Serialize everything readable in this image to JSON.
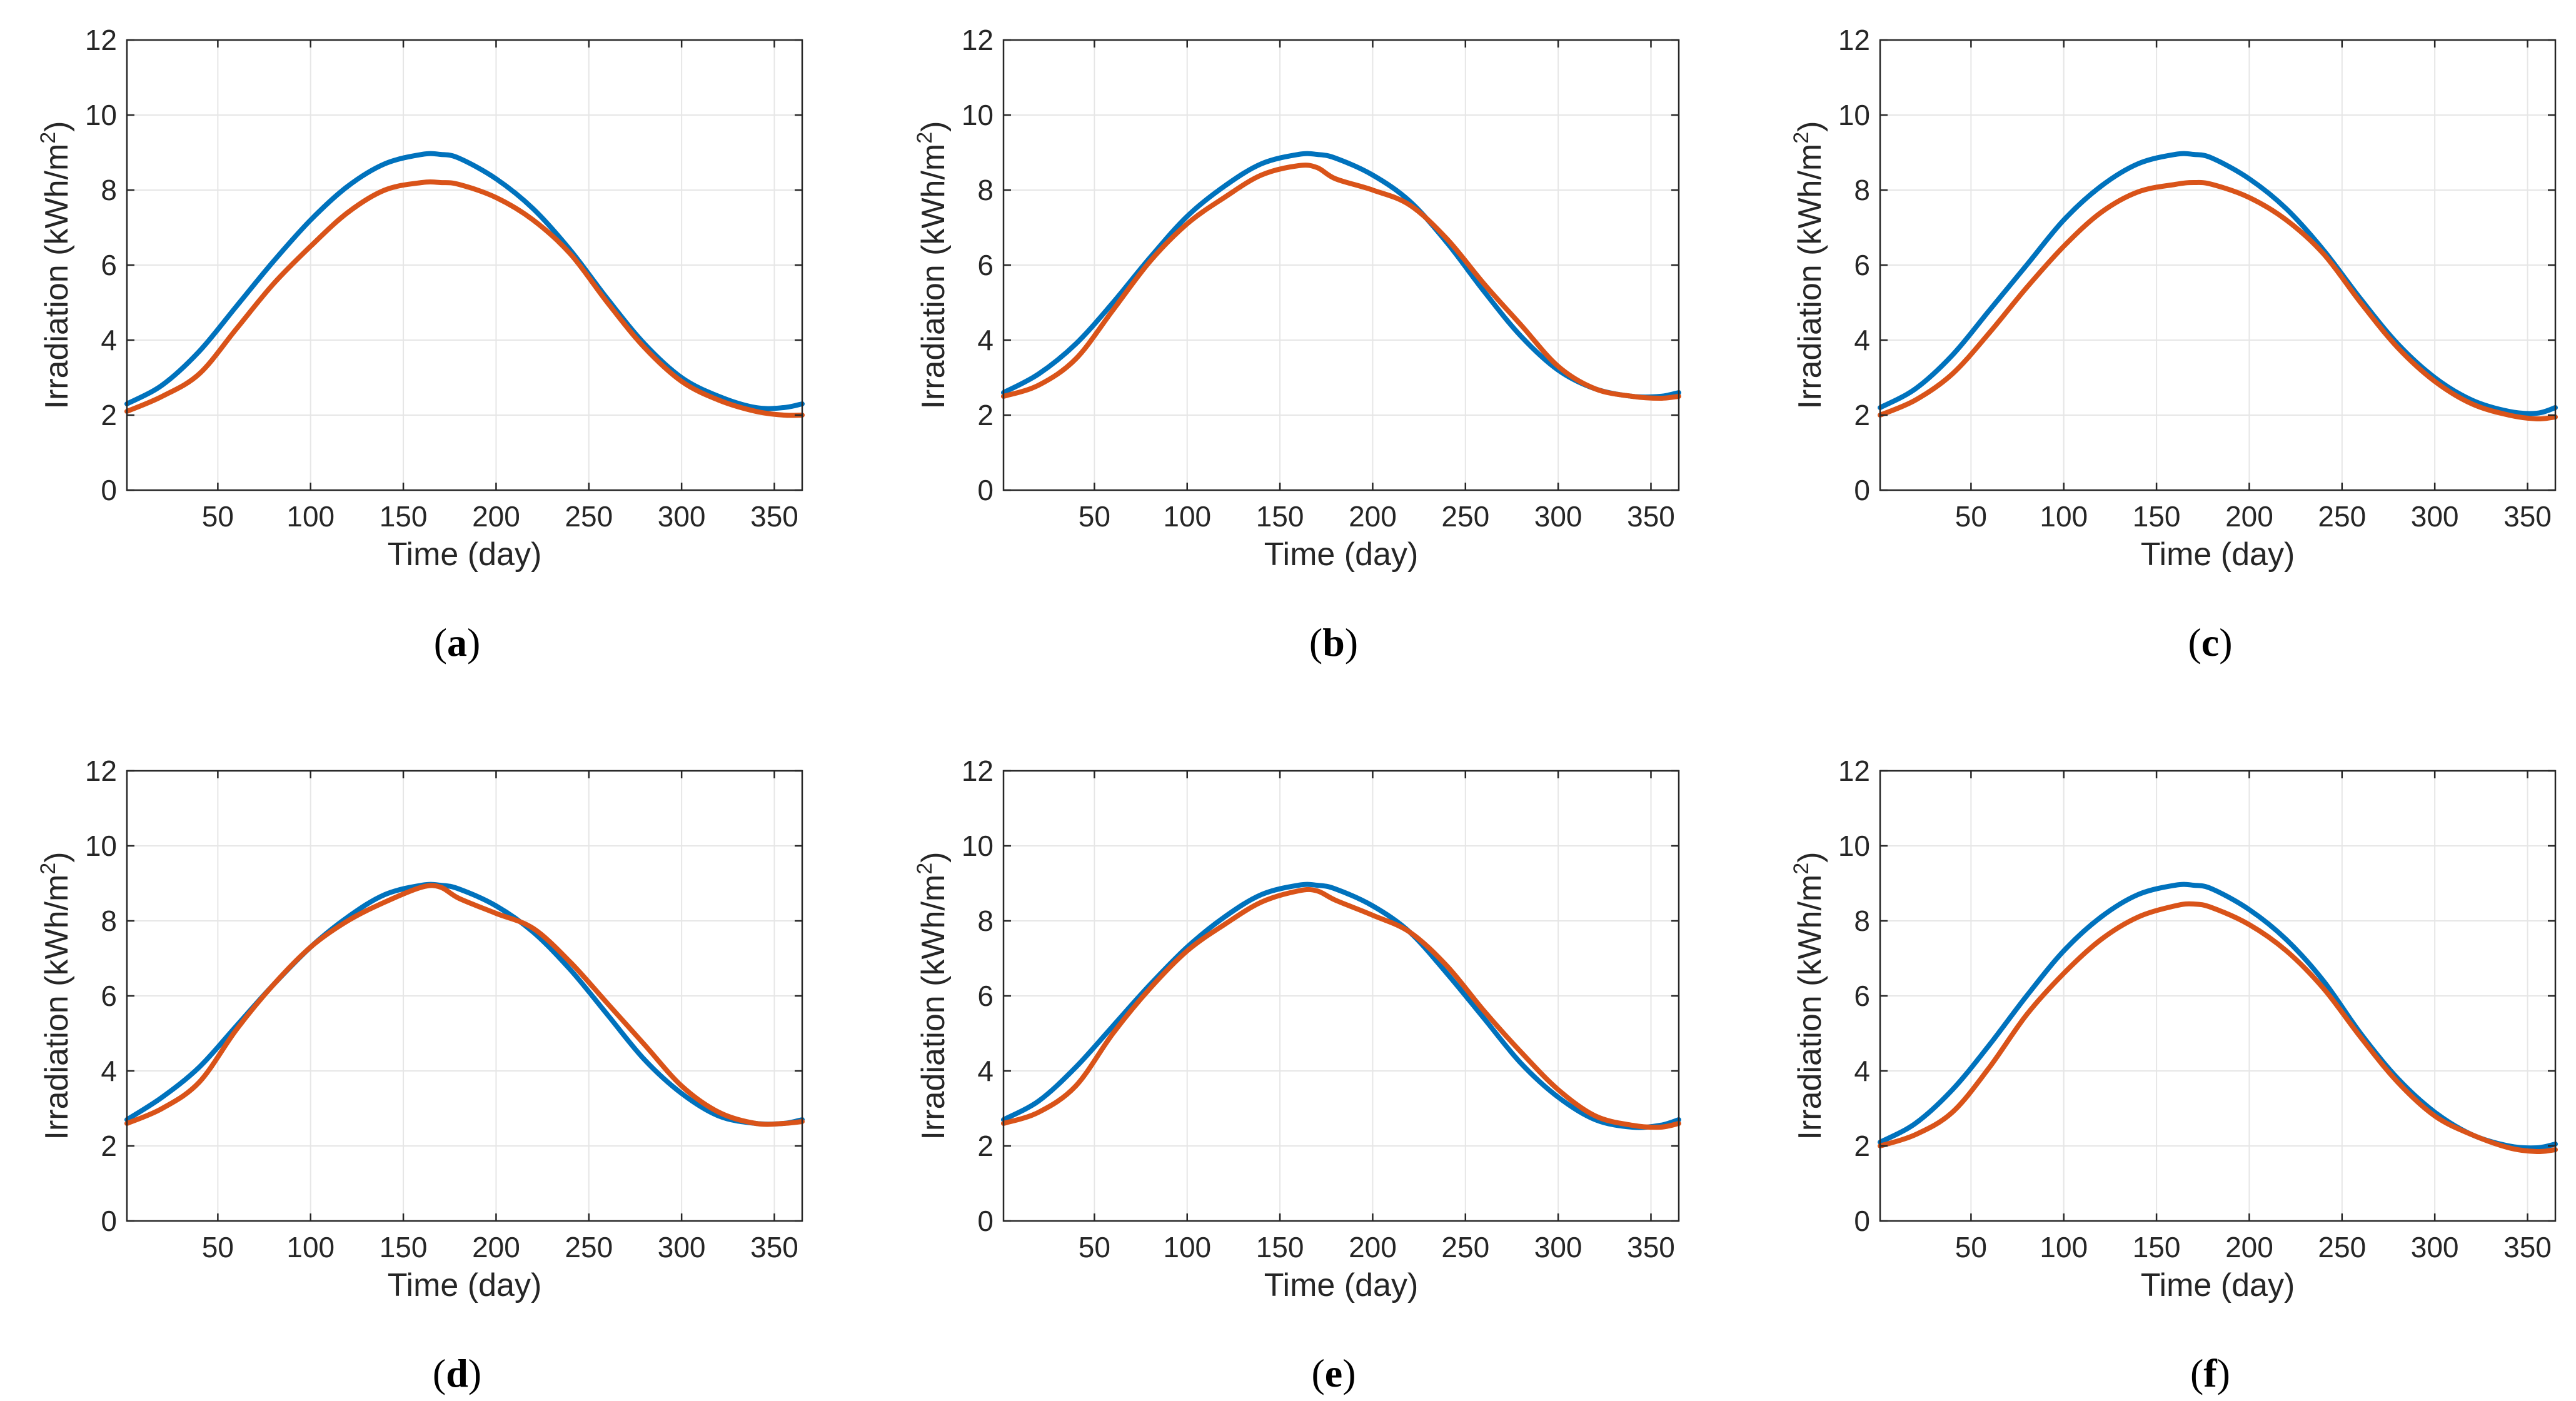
{
  "figure": {
    "colors": {
      "series_1": "#0072BD",
      "series_2": "#D95319",
      "grid": "#e6e6e6",
      "axes": "#262626"
    },
    "panels": [
      {
        "caption_letter": "a",
        "chart_data": {
          "type": "line",
          "xlabel": "Time (day)",
          "ylabel_main": "Irradiation (kWh/m",
          "ylabel_sup": "2",
          "ylabel_close": ")",
          "xlim": [
            1,
            365
          ],
          "ylim": [
            0,
            12
          ],
          "xticks": [
            50,
            100,
            150,
            200,
            250,
            300,
            350
          ],
          "yticks": [
            0,
            2,
            4,
            6,
            8,
            10,
            12
          ],
          "x": [
            1,
            20,
            40,
            60,
            80,
            100,
            120,
            140,
            160,
            170,
            180,
            200,
            220,
            240,
            260,
            280,
            300,
            320,
            340,
            355,
            365
          ],
          "series": [
            {
              "name": "blue",
              "values": [
                2.3,
                2.8,
                3.7,
                4.9,
                6.1,
                7.2,
                8.1,
                8.7,
                8.95,
                8.95,
                8.85,
                8.3,
                7.5,
                6.4,
                5.1,
                3.9,
                3.0,
                2.5,
                2.2,
                2.2,
                2.3
              ]
            },
            {
              "name": "orange",
              "values": [
                2.1,
                2.5,
                3.1,
                4.3,
                5.5,
                6.5,
                7.4,
                8.0,
                8.2,
                8.2,
                8.15,
                7.8,
                7.2,
                6.3,
                5.0,
                3.8,
                2.9,
                2.4,
                2.1,
                2.0,
                2.0
              ]
            }
          ]
        }
      },
      {
        "caption_letter": "b",
        "chart_data": {
          "type": "line",
          "xlabel": "Time (day)",
          "ylabel_main": "Irradiation (kWh/m",
          "ylabel_sup": "2",
          "ylabel_close": ")",
          "xlim": [
            1,
            365
          ],
          "ylim": [
            0,
            12
          ],
          "xticks": [
            50,
            100,
            150,
            200,
            250,
            300,
            350
          ],
          "yticks": [
            0,
            2,
            4,
            6,
            8,
            10,
            12
          ],
          "x": [
            1,
            20,
            40,
            60,
            80,
            100,
            120,
            140,
            160,
            170,
            180,
            200,
            220,
            240,
            260,
            280,
            300,
            320,
            340,
            355,
            365
          ],
          "series": [
            {
              "name": "blue",
              "values": [
                2.6,
                3.1,
                3.9,
                5.0,
                6.2,
                7.3,
                8.1,
                8.7,
                8.95,
                8.95,
                8.85,
                8.4,
                7.7,
                6.6,
                5.3,
                4.1,
                3.2,
                2.7,
                2.5,
                2.5,
                2.6
              ]
            },
            {
              "name": "orange",
              "values": [
                2.5,
                2.8,
                3.5,
                4.8,
                6.1,
                7.1,
                7.8,
                8.4,
                8.65,
                8.6,
                8.3,
                8.0,
                7.6,
                6.7,
                5.5,
                4.4,
                3.3,
                2.7,
                2.5,
                2.45,
                2.5
              ]
            }
          ]
        }
      },
      {
        "caption_letter": "c",
        "chart_data": {
          "type": "line",
          "xlabel": "Time (day)",
          "ylabel_main": "Irradiation (kWh/m",
          "ylabel_sup": "2",
          "ylabel_close": ")",
          "xlim": [
            1,
            365
          ],
          "ylim": [
            0,
            12
          ],
          "xticks": [
            50,
            100,
            150,
            200,
            250,
            300,
            350
          ],
          "yticks": [
            0,
            2,
            4,
            6,
            8,
            10,
            12
          ],
          "x": [
            1,
            20,
            40,
            60,
            80,
            100,
            120,
            140,
            160,
            170,
            180,
            200,
            220,
            240,
            260,
            280,
            300,
            320,
            340,
            355,
            365
          ],
          "series": [
            {
              "name": "blue",
              "values": [
                2.2,
                2.7,
                3.6,
                4.8,
                6.0,
                7.2,
                8.1,
                8.7,
                8.95,
                8.95,
                8.85,
                8.3,
                7.5,
                6.4,
                5.1,
                3.9,
                3.0,
                2.4,
                2.1,
                2.05,
                2.2
              ]
            },
            {
              "name": "orange",
              "values": [
                2.0,
                2.4,
                3.1,
                4.2,
                5.4,
                6.5,
                7.4,
                7.95,
                8.15,
                8.2,
                8.15,
                7.8,
                7.2,
                6.3,
                5.0,
                3.8,
                2.9,
                2.3,
                2.0,
                1.9,
                1.95
              ]
            }
          ]
        }
      },
      {
        "caption_letter": "d",
        "chart_data": {
          "type": "line",
          "xlabel": "Time (day)",
          "ylabel_main": "Irradiation (kWh/m",
          "ylabel_sup": "2",
          "ylabel_close": ")",
          "xlim": [
            1,
            365
          ],
          "ylim": [
            0,
            12
          ],
          "xticks": [
            50,
            100,
            150,
            200,
            250,
            300,
            350
          ],
          "yticks": [
            0,
            2,
            4,
            6,
            8,
            10,
            12
          ],
          "x": [
            1,
            20,
            40,
            60,
            80,
            100,
            120,
            140,
            160,
            170,
            180,
            200,
            220,
            240,
            260,
            280,
            300,
            320,
            340,
            355,
            365
          ],
          "series": [
            {
              "name": "blue",
              "values": [
                2.7,
                3.3,
                4.1,
                5.2,
                6.3,
                7.3,
                8.1,
                8.7,
                8.95,
                8.95,
                8.85,
                8.4,
                7.7,
                6.7,
                5.5,
                4.3,
                3.4,
                2.8,
                2.6,
                2.6,
                2.7
              ]
            },
            {
              "name": "orange",
              "values": [
                2.6,
                3.0,
                3.7,
                5.1,
                6.3,
                7.3,
                8.0,
                8.5,
                8.9,
                8.9,
                8.6,
                8.2,
                7.8,
                6.9,
                5.8,
                4.7,
                3.6,
                2.9,
                2.6,
                2.6,
                2.65
              ]
            }
          ]
        }
      },
      {
        "caption_letter": "e",
        "chart_data": {
          "type": "line",
          "xlabel": "Time (day)",
          "ylabel_main": "Irradiation (kWh/m",
          "ylabel_sup": "2",
          "ylabel_close": ")",
          "xlim": [
            1,
            365
          ],
          "ylim": [
            0,
            12
          ],
          "xticks": [
            50,
            100,
            150,
            200,
            250,
            300,
            350
          ],
          "yticks": [
            0,
            2,
            4,
            6,
            8,
            10,
            12
          ],
          "x": [
            1,
            20,
            40,
            60,
            80,
            100,
            120,
            140,
            160,
            170,
            180,
            200,
            220,
            240,
            260,
            280,
            300,
            320,
            340,
            355,
            365
          ],
          "series": [
            {
              "name": "blue",
              "values": [
                2.7,
                3.2,
                4.1,
                5.2,
                6.3,
                7.3,
                8.1,
                8.7,
                8.95,
                8.95,
                8.85,
                8.4,
                7.7,
                6.6,
                5.4,
                4.2,
                3.3,
                2.7,
                2.5,
                2.55,
                2.7
              ]
            },
            {
              "name": "orange",
              "values": [
                2.6,
                2.9,
                3.6,
                5.0,
                6.2,
                7.2,
                7.9,
                8.5,
                8.8,
                8.8,
                8.55,
                8.15,
                7.7,
                6.8,
                5.6,
                4.5,
                3.5,
                2.8,
                2.55,
                2.5,
                2.6
              ]
            }
          ]
        }
      },
      {
        "caption_letter": "f",
        "chart_data": {
          "type": "line",
          "xlabel": "Time (day)",
          "ylabel_main": "Irradiation (kWh/m",
          "ylabel_sup": "2",
          "ylabel_close": ")",
          "xlim": [
            1,
            365
          ],
          "ylim": [
            0,
            12
          ],
          "xticks": [
            50,
            100,
            150,
            200,
            250,
            300,
            350
          ],
          "yticks": [
            0,
            2,
            4,
            6,
            8,
            10,
            12
          ],
          "x": [
            1,
            20,
            40,
            60,
            80,
            100,
            120,
            140,
            160,
            170,
            180,
            200,
            220,
            240,
            260,
            280,
            300,
            320,
            340,
            355,
            365
          ],
          "series": [
            {
              "name": "blue",
              "values": [
                2.1,
                2.6,
                3.5,
                4.7,
                6.0,
                7.2,
                8.1,
                8.7,
                8.95,
                8.95,
                8.85,
                8.3,
                7.5,
                6.4,
                5.0,
                3.8,
                2.9,
                2.3,
                2.0,
                1.95,
                2.05
              ]
            },
            {
              "name": "orange",
              "values": [
                2.0,
                2.3,
                2.9,
                4.1,
                5.5,
                6.6,
                7.5,
                8.1,
                8.4,
                8.45,
                8.35,
                7.9,
                7.2,
                6.2,
                4.9,
                3.7,
                2.8,
                2.3,
                1.95,
                1.85,
                1.9
              ]
            }
          ]
        }
      }
    ]
  }
}
